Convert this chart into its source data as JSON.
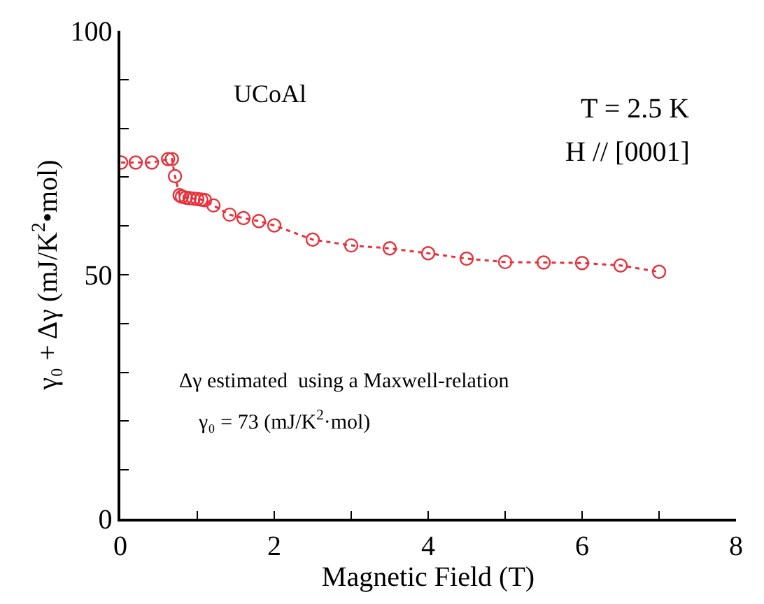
{
  "chart_data": {
    "type": "line",
    "xlabel": "Magnetic Field (T)",
    "ylabel": "γ₀ + Δγ (mJ/K$^{2}$•mol)",
    "x": [
      0.01,
      0.2,
      0.41,
      0.62,
      0.67,
      0.71,
      0.77,
      0.8,
      0.85,
      0.9,
      0.95,
      1.0,
      1.05,
      1.1,
      1.21,
      1.42,
      1.6,
      1.8,
      2.0,
      2.5,
      3.0,
      3.5,
      4.0,
      4.5,
      5.0,
      5.5,
      6.0,
      6.5,
      7.0
    ],
    "series": [
      {
        "color": "#e8303a",
        "values": [
          73,
          73,
          73,
          73.7,
          73.7,
          70.2,
          66.3,
          66,
          65.8,
          65.7,
          65.6,
          65.5,
          65.4,
          65.3,
          64.2,
          62.3,
          61.6,
          61,
          60.1,
          57.2,
          56,
          55.4,
          54.4,
          53.3,
          52.6,
          52.5,
          52.4,
          51.9,
          50.6
        ]
      }
    ],
    "marker": "circle",
    "line_style": "dotted",
    "xlim": [
      0,
      8
    ],
    "ylim": [
      0,
      100
    ],
    "xticks": [
      0,
      {
        "value": 1,
        "label": null
      },
      2,
      {
        "value": 3,
        "label": null
      },
      4,
      {
        "value": 5,
        "label": null
      },
      6,
      {
        "value": 7,
        "label": null
      },
      8
    ],
    "yticks": [
      0,
      {
        "value": 10,
        "label": null
      },
      {
        "value": 20,
        "label": null
      },
      {
        "value": 30,
        "label": null
      },
      {
        "value": 40,
        "label": null
      },
      50,
      {
        "value": 60,
        "label": null
      },
      {
        "value": 70,
        "label": null
      },
      {
        "value": 80,
        "label": null
      },
      {
        "value": 90,
        "label": null
      },
      100
    ],
    "legend": false,
    "annotations": [
      "UCoAl",
      "T = 2.5 K",
      "H // [0001]",
      "Δγ estimated  using a Maxwell-relation",
      "γ₀ = 73 (mJ/K$^{2}$·mol)"
    ]
  }
}
